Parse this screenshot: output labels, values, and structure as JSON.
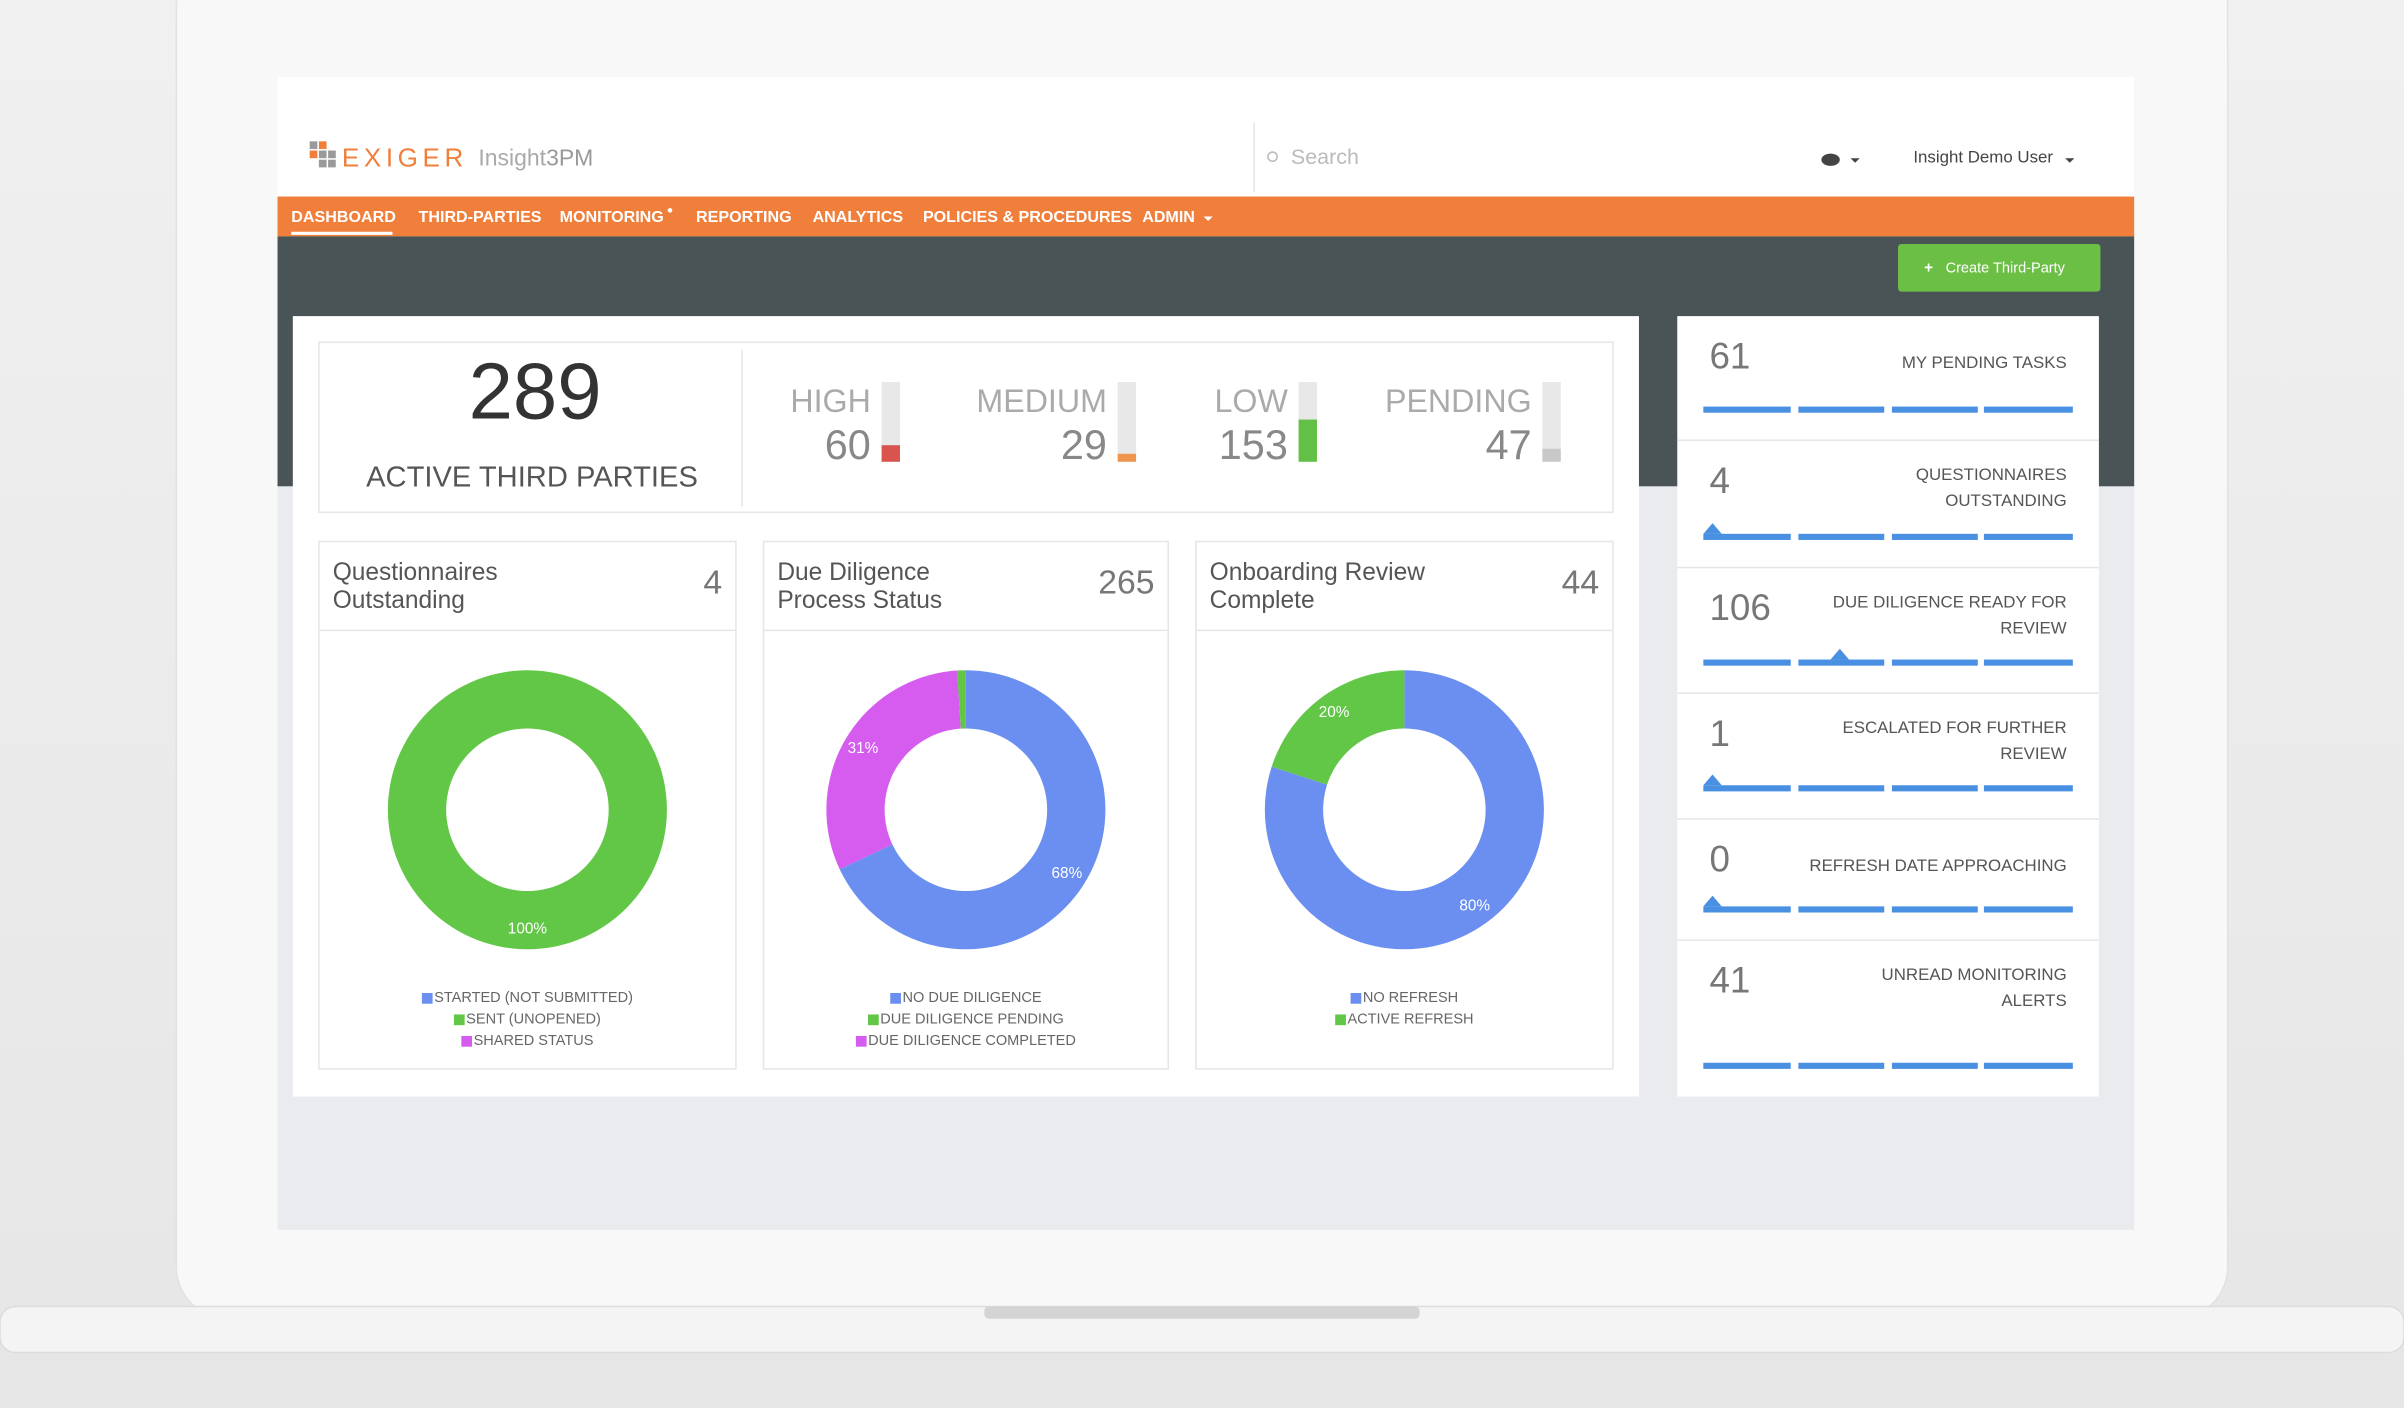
{
  "header": {
    "logo": "EXIGER",
    "product_prefix": "Insight",
    "product_suffix": "3PM",
    "search_placeholder": "Search",
    "user": "Insight Demo User"
  },
  "nav": [
    "DASHBOARD",
    "THIRD-PARTIES",
    "MONITORING",
    "REPORTING",
    "ANALYTICS",
    "POLICIES & PROCEDURES",
    "ADMIN"
  ],
  "create_button": "Create Third-Party",
  "summary": {
    "total": 289,
    "total_label": "ACTIVE THIRD PARTIES",
    "risk": [
      {
        "label": "HIGH",
        "value": 60,
        "color": "#d9534f"
      },
      {
        "label": "MEDIUM",
        "value": 29,
        "color": "#f0954f"
      },
      {
        "label": "LOW",
        "value": 153,
        "color": "#62c046"
      },
      {
        "label": "PENDING",
        "value": 47,
        "color": "#c8c8c8"
      }
    ]
  },
  "charts": [
    {
      "type": "pie",
      "title_lines": [
        "Questionnaires",
        "Outstanding"
      ],
      "count": 4,
      "categories": [
        "STARTED (NOT SUBMITTED)",
        "SENT (UNOPENED)",
        "SHARED STATUS"
      ],
      "values": [
        0,
        100,
        0
      ],
      "value_labels": [
        null,
        "100%",
        null
      ],
      "colors": [
        "#6b8ff0",
        "#62c646",
        "#d65cf0"
      ]
    },
    {
      "type": "pie",
      "title_lines": [
        "Due Diligence",
        "Process Status"
      ],
      "count": 265,
      "categories": [
        "NO DUE DILIGENCE",
        "DUE DILIGENCE PENDING",
        "DUE DILIGENCE COMPLETED"
      ],
      "values": [
        68,
        1,
        31
      ],
      "value_labels": [
        "68%",
        null,
        "31%"
      ],
      "colors": [
        "#6b8ff0",
        "#62c646",
        "#d65cf0"
      ]
    },
    {
      "type": "pie",
      "title_lines": [
        "Onboarding Review",
        "Complete"
      ],
      "count": 44,
      "categories": [
        "NO REFRESH",
        "ACTIVE REFRESH"
      ],
      "values": [
        80,
        20
      ],
      "value_labels": [
        "80%",
        "20%"
      ],
      "colors": [
        "#6b8ff0",
        "#62c646"
      ]
    }
  ],
  "tasks": [
    {
      "value": 61,
      "label_lines": [
        "MY PENDING TASKS"
      ]
    },
    {
      "value": 4,
      "label_lines": [
        "QUESTIONNAIRES",
        "OUTSTANDING"
      ]
    },
    {
      "value": 106,
      "label_lines": [
        "DUE DILIGENCE READY FOR",
        "REVIEW"
      ]
    },
    {
      "value": 1,
      "label_lines": [
        "ESCALATED FOR FURTHER",
        "REVIEW"
      ]
    },
    {
      "value": 0,
      "label_lines": [
        "REFRESH DATE APPROACHING"
      ]
    },
    {
      "value": 41,
      "label_lines": [
        "UNREAD MONITORING",
        "ALERTS"
      ]
    }
  ]
}
